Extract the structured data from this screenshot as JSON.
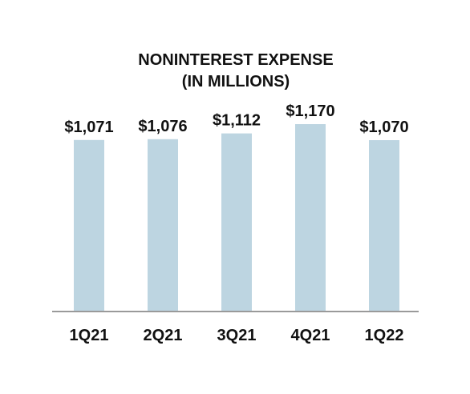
{
  "chart_data": {
    "type": "bar",
    "title": "NONINTEREST EXPENSE",
    "subtitle": "(IN MILLIONS)",
    "categories": [
      "1Q21",
      "2Q21",
      "3Q21",
      "4Q21",
      "1Q22"
    ],
    "values": [
      1071,
      1076,
      1112,
      1170,
      1070
    ],
    "data_labels": [
      "$1,071",
      "$1,076",
      "$1,112",
      "$1,170",
      "$1,070"
    ],
    "xlabel": "",
    "ylabel": "",
    "ylim": [
      0,
      1170
    ],
    "grid": false,
    "legend": "none",
    "colors": {
      "bar": "#bdd5e1",
      "axis": "#9a9a9a",
      "text": "#111111"
    }
  }
}
